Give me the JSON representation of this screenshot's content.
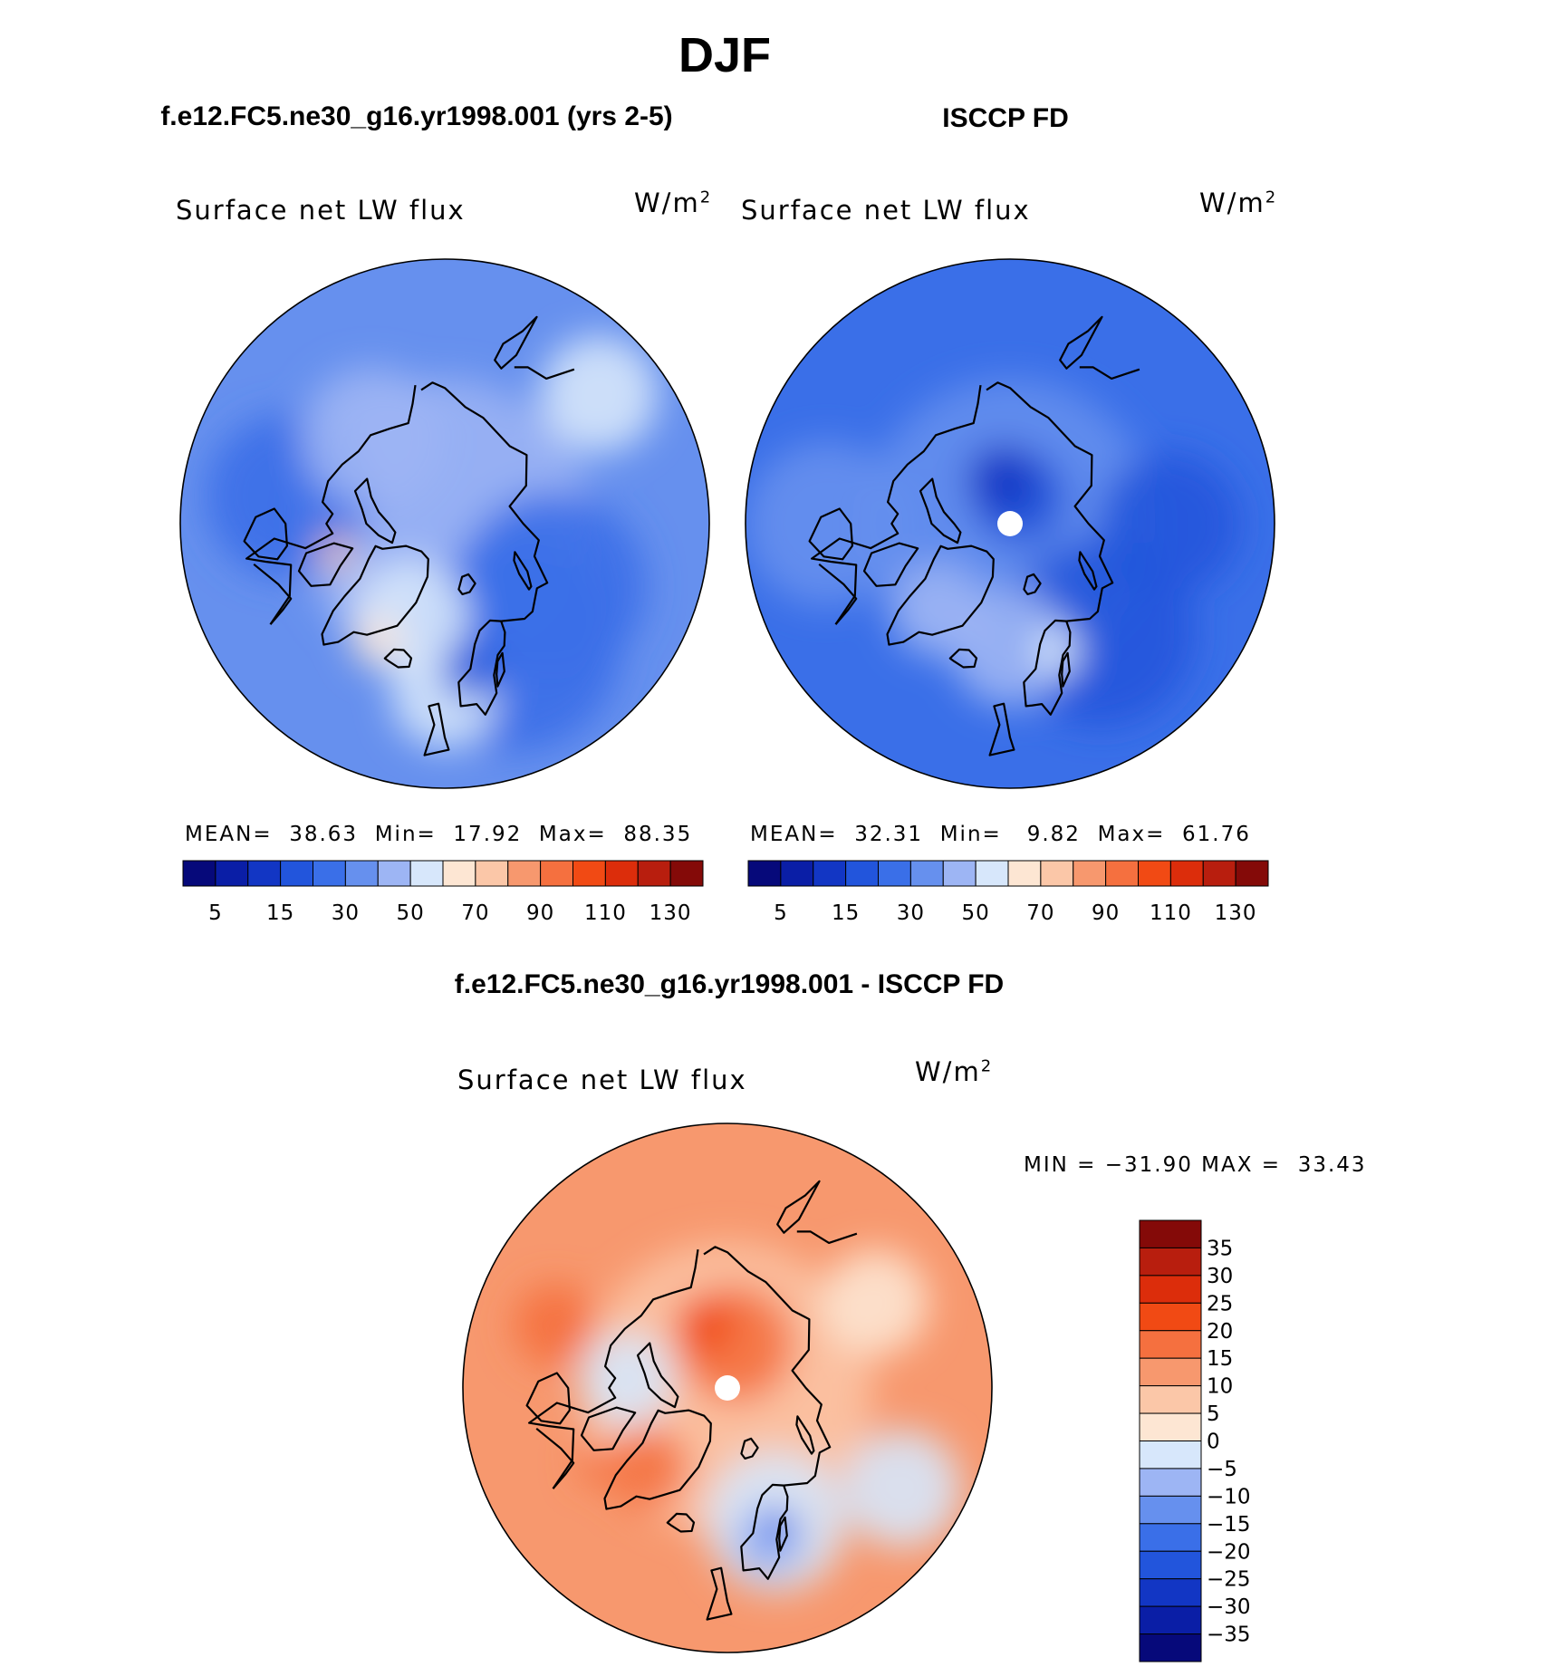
{
  "figure": {
    "season": "DJF",
    "difference_title": "f.e12.FC5.ne30_g16.yr1998.001 - ISCCP FD"
  },
  "chart_data": [
    {
      "type": "heatmap",
      "projection": "north-polar-stereographic",
      "title": "f.e12.FC5.ne30_g16.yr1998.001 (yrs 2-5)",
      "variable": "Surface net LW flux",
      "units_base": "W/m",
      "units_exp": "2",
      "stats": {
        "mean_label": "MEAN=",
        "mean": "38.63",
        "min_label": "Min=",
        "min": "17.92",
        "max_label": "Max=",
        "max": "88.35"
      },
      "colorbar": {
        "colors": [
          "#06097a",
          "#0a1ea6",
          "#1236c4",
          "#2255dc",
          "#3a6fe8",
          "#6690ee",
          "#9db5f4",
          "#d7e7fb",
          "#fde6d3",
          "#fbc7a8",
          "#f7986e",
          "#f5703f",
          "#f14a14",
          "#dc2d0b",
          "#b81e0e",
          "#840a08"
        ],
        "tick_labels": [
          "5",
          "15",
          "30",
          "50",
          "70",
          "90",
          "110",
          "130"
        ]
      },
      "regions": [
        {
          "color": "#3a6fe8",
          "lon": 30,
          "lat": 65,
          "r": 18
        },
        {
          "color": "#3a6fe8",
          "lon": 60,
          "lat": 68,
          "r": 16
        },
        {
          "color": "#3a6fe8",
          "lon": -100,
          "lat": 62,
          "r": 14
        },
        {
          "color": "#d7e7fb",
          "lon": -20,
          "lat": 72,
          "r": 10
        },
        {
          "color": "#d7e7fb",
          "lon": 0,
          "lat": 60,
          "r": 9
        },
        {
          "color": "#d7e7fb",
          "lon": 130,
          "lat": 55,
          "r": 10
        },
        {
          "color": "#fde6d3",
          "lon": -30,
          "lat": 66,
          "r": 4
        },
        {
          "color": "#fbc7a8",
          "lon": -75,
          "lat": 70,
          "r": 3
        },
        {
          "color": "#9db5f4",
          "lon": -140,
          "lat": 70,
          "r": 12
        },
        {
          "color": "#2255dc",
          "lon": 10,
          "lat": 64,
          "r": 5
        }
      ]
    },
    {
      "type": "heatmap",
      "projection": "north-polar-stereographic",
      "title": "ISCCP FD",
      "variable": "Surface net LW flux",
      "units_base": "W/m",
      "units_exp": "2",
      "stats": {
        "mean_label": "MEAN=",
        "mean": "32.31",
        "min_label": "Min=",
        "min": "9.82",
        "max_label": "Max=",
        "max": "61.76"
      },
      "colorbar": {
        "colors": [
          "#06097a",
          "#0a1ea6",
          "#1236c4",
          "#2255dc",
          "#3a6fe8",
          "#6690ee",
          "#9db5f4",
          "#d7e7fb",
          "#fde6d3",
          "#fbc7a8",
          "#f7986e",
          "#f5703f",
          "#f14a14",
          "#dc2d0b",
          "#b81e0e",
          "#840a08"
        ],
        "tick_labels": [
          "5",
          "15",
          "30",
          "50",
          "70",
          "90",
          "110",
          "130"
        ]
      },
      "regions": [
        {
          "color": "#2255dc",
          "lon": 160,
          "lat": 85,
          "r": 8
        },
        {
          "color": "#1236c4",
          "lon": -170,
          "lat": 82,
          "r": 6
        },
        {
          "color": "#2255dc",
          "lon": 40,
          "lat": 65,
          "r": 16
        },
        {
          "color": "#2255dc",
          "lon": 90,
          "lat": 62,
          "r": 12
        },
        {
          "color": "#9db5f4",
          "lon": 0,
          "lat": 68,
          "r": 10
        },
        {
          "color": "#6690ee",
          "lon": -90,
          "lat": 58,
          "r": 14
        },
        {
          "color": "#9db5f4",
          "lon": -40,
          "lat": 70,
          "r": 8
        },
        {
          "color": "#d7e7fb",
          "lon": 20,
          "lat": 66,
          "r": 4
        }
      ]
    },
    {
      "type": "heatmap",
      "projection": "north-polar-stereographic",
      "title": "f.e12.FC5.ne30_g16.yr1998.001 - ISCCP FD",
      "variable": "Surface net LW flux",
      "units_base": "W/m",
      "units_exp": "2",
      "stats_text": "MIN = −31.90 MAX =  33.43",
      "colorbar": {
        "colors": [
          "#840a08",
          "#b81e0e",
          "#dc2d0b",
          "#f14a14",
          "#f5703f",
          "#f7986e",
          "#fbc7a8",
          "#fde6d3",
          "#d7e7fb",
          "#9db5f4",
          "#6690ee",
          "#3a6fe8",
          "#2255dc",
          "#1236c4",
          "#0a1ea6",
          "#06097a"
        ],
        "tick_labels": [
          "35",
          "30",
          "25",
          "20",
          "15",
          "10",
          "5",
          "0",
          "−5",
          "−10",
          "−15",
          "−20",
          "−25",
          "−30",
          "−35"
        ]
      },
      "regions": [
        {
          "color": "#f5703f",
          "lon": 170,
          "lat": 82,
          "r": 10
        },
        {
          "color": "#f14a14",
          "lon": -160,
          "lat": 78,
          "r": 5
        },
        {
          "color": "#d7e7fb",
          "lon": 20,
          "lat": 65,
          "r": 12
        },
        {
          "color": "#9db5f4",
          "lon": 15,
          "lat": 62,
          "r": 6
        },
        {
          "color": "#3a6fe8",
          "lon": 20,
          "lat": 64,
          "r": 3
        },
        {
          "color": "#d7e7fb",
          "lon": -95,
          "lat": 72,
          "r": 8
        },
        {
          "color": "#d7e7fb",
          "lon": 60,
          "lat": 55,
          "r": 10
        },
        {
          "color": "#f5703f",
          "lon": -45,
          "lat": 70,
          "r": 7
        },
        {
          "color": "#f5703f",
          "lon": -110,
          "lat": 58,
          "r": 7
        },
        {
          "color": "#fde6d3",
          "lon": 120,
          "lat": 60,
          "r": 9
        },
        {
          "color": "#f5703f",
          "lon": -60,
          "lat": 63,
          "r": 3
        }
      ]
    }
  ]
}
